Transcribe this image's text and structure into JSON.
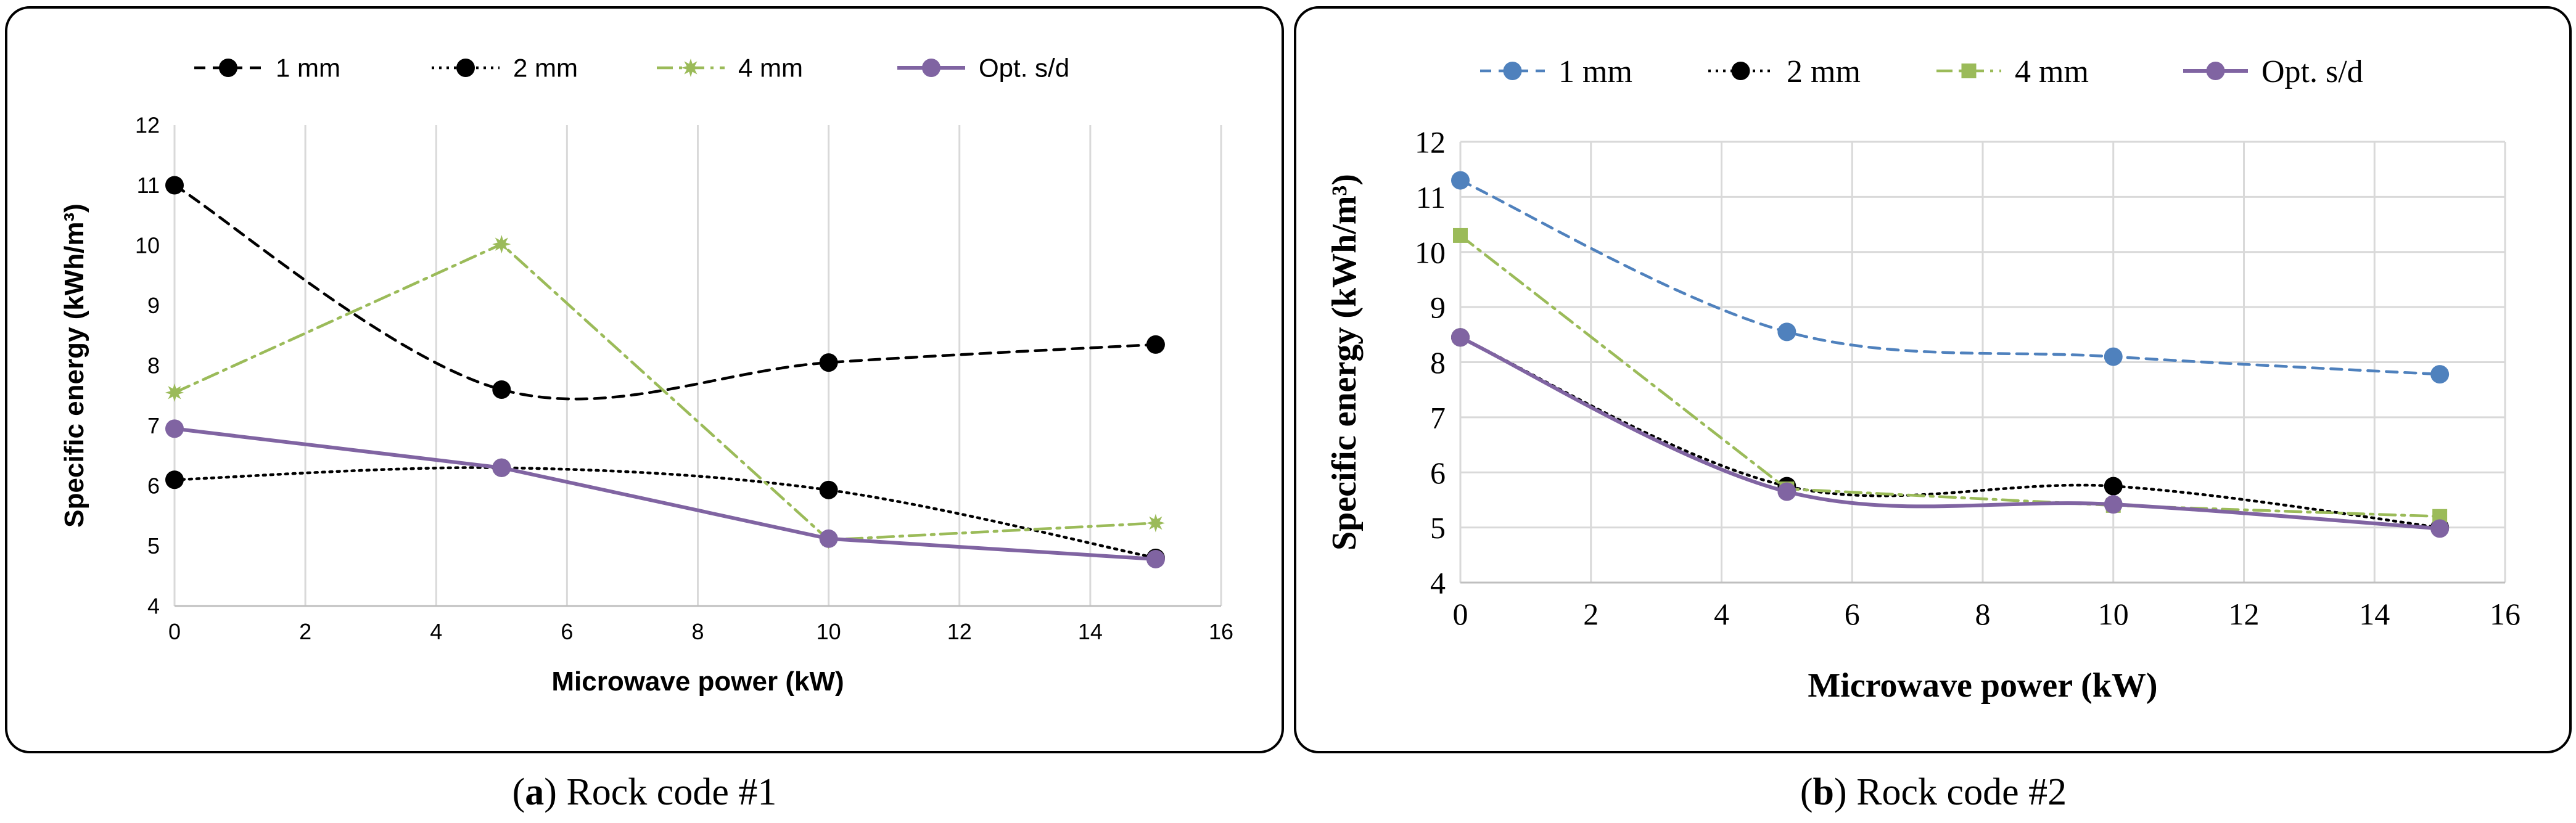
{
  "panels": [
    {
      "id": "a",
      "caption_letter": "a",
      "caption_text": " Rock code #1",
      "font": "sans",
      "chart_data": {
        "type": "line",
        "xlabel": "Microwave power (kW)",
        "ylabel": "Specific energy (kWh/m³)",
        "xlim": [
          0,
          16
        ],
        "ylim": [
          4,
          12
        ],
        "xticks": [
          0,
          2,
          4,
          6,
          8,
          10,
          12,
          14,
          16
        ],
        "yticks": [
          4,
          5,
          6,
          7,
          8,
          9,
          10,
          11,
          12
        ],
        "grid": "vertical",
        "legend": "top",
        "series": [
          {
            "name": "1 mm",
            "x": [
              0,
              5,
              10,
              15
            ],
            "y": [
              11.0,
              7.6,
              8.05,
              8.35
            ],
            "color": "#000000",
            "dash": "dashed",
            "marker": "circle",
            "smooth": true
          },
          {
            "name": "2 mm",
            "x": [
              0,
              5,
              10,
              15
            ],
            "y": [
              6.1,
              6.3,
              5.93,
              4.8
            ],
            "color": "#000000",
            "dash": "dotted",
            "marker": "circle",
            "smooth": true
          },
          {
            "name": "4 mm",
            "x": [
              0,
              5,
              10,
              15
            ],
            "y": [
              7.55,
              10.02,
              5.1,
              5.38
            ],
            "color": "#9bbb59",
            "dash": "dashdot",
            "marker": "star",
            "smooth": false
          },
          {
            "name": "Opt. s/d",
            "x": [
              0,
              5,
              10,
              15
            ],
            "y": [
              6.95,
              6.3,
              5.12,
              4.78
            ],
            "color": "#8064a2",
            "dash": "solid",
            "marker": "circle",
            "smooth": false
          }
        ]
      }
    },
    {
      "id": "b",
      "caption_letter": "b",
      "caption_text": " Rock code #2",
      "font": "serif",
      "chart_data": {
        "type": "line",
        "xlabel": "Microwave power (kW)",
        "ylabel": "Specific energy (kWh/m³)",
        "xlim": [
          0,
          16
        ],
        "ylim": [
          4,
          12
        ],
        "xticks": [
          0,
          2,
          4,
          6,
          8,
          10,
          12,
          14,
          16
        ],
        "yticks": [
          4,
          5,
          6,
          7,
          8,
          9,
          10,
          11,
          12
        ],
        "grid": "both",
        "legend": "top",
        "series": [
          {
            "name": "1 mm",
            "x": [
              0,
              5,
              10,
              15
            ],
            "y": [
              11.3,
              8.55,
              8.1,
              7.78
            ],
            "color": "#4f81bd",
            "dash": "dashed",
            "marker": "circle",
            "smooth": true
          },
          {
            "name": "2 mm",
            "x": [
              0,
              5,
              10,
              15
            ],
            "y": [
              8.45,
              5.75,
              5.75,
              5.0
            ],
            "color": "#000000",
            "dash": "dotted",
            "marker": "circle",
            "smooth": true
          },
          {
            "name": "4 mm",
            "x": [
              0,
              5,
              10,
              15
            ],
            "y": [
              10.3,
              5.7,
              5.4,
              5.2
            ],
            "color": "#9bbb59",
            "dash": "dashdot",
            "marker": "square",
            "smooth": false
          },
          {
            "name": "Opt. s/d",
            "x": [
              0,
              5,
              10,
              15
            ],
            "y": [
              8.45,
              5.65,
              5.42,
              4.98
            ],
            "color": "#8064a2",
            "dash": "solid",
            "marker": "circle",
            "smooth": true
          }
        ]
      }
    }
  ]
}
